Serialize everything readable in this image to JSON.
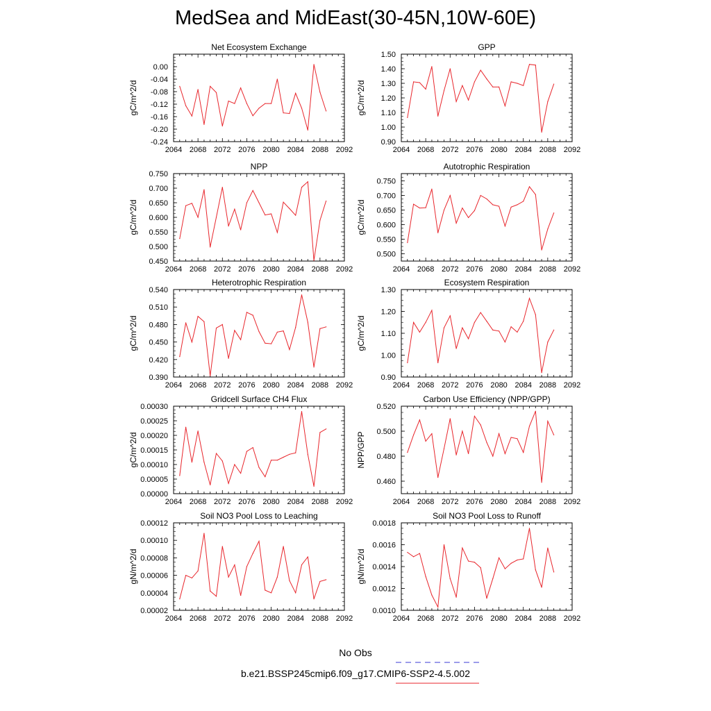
{
  "title": "MedSea and MidEast(30-45N,10W-60E)",
  "legend": {
    "obs_label": "No Obs",
    "obs_color": "#3a3ad6",
    "model_label": "b.e21.BSSP245cmip6.f09_g17.CMIP6-SSP2-4.5.002",
    "model_color": "#e8252b"
  },
  "chart_data": [
    {
      "type": "line",
      "title": "Net Ecosystem Exchange",
      "ylabel": "gC/m^2/d",
      "xlim": [
        2064,
        2092
      ],
      "ylim": [
        -0.24,
        0.04
      ],
      "xticks": [
        "2064",
        "2068",
        "2072",
        "2076",
        "2080",
        "2084",
        "2088",
        "2092"
      ],
      "yticks": [
        "-0.24",
        "-0.20",
        "-0.16",
        "-0.12",
        "-0.08",
        "-0.04",
        "0.00"
      ],
      "ytick_values": [
        -0.24,
        -0.2,
        -0.16,
        -0.12,
        -0.08,
        -0.04,
        0.0
      ],
      "x": [
        2065,
        2066,
        2067,
        2068,
        2069,
        2070,
        2071,
        2072,
        2073,
        2074,
        2075,
        2076,
        2077,
        2078,
        2079,
        2080,
        2081,
        2082,
        2083,
        2084,
        2085,
        2086,
        2087,
        2088,
        2089
      ],
      "series": [
        {
          "values": [
            -0.063,
            -0.125,
            -0.158,
            -0.073,
            -0.185,
            -0.063,
            -0.083,
            -0.19,
            -0.11,
            -0.118,
            -0.068,
            -0.118,
            -0.157,
            -0.133,
            -0.118,
            -0.118,
            -0.04,
            -0.148,
            -0.15,
            -0.085,
            -0.133,
            -0.203,
            0.007,
            -0.082,
            -0.142
          ]
        }
      ]
    },
    {
      "type": "line",
      "title": "GPP",
      "ylabel": "gC/m^2/d",
      "xlim": [
        2064,
        2092
      ],
      "ylim": [
        0.9,
        1.5
      ],
      "xticks": [
        "2064",
        "2068",
        "2072",
        "2076",
        "2080",
        "2084",
        "2088",
        "2092"
      ],
      "yticks": [
        "0.90",
        "1.00",
        "1.10",
        "1.20",
        "1.30",
        "1.40",
        "1.50"
      ],
      "ytick_values": [
        0.9,
        1.0,
        1.1,
        1.2,
        1.3,
        1.4,
        1.5
      ],
      "x": [
        2065,
        2066,
        2067,
        2068,
        2069,
        2070,
        2071,
        2072,
        2073,
        2074,
        2075,
        2076,
        2077,
        2078,
        2079,
        2080,
        2081,
        2082,
        2083,
        2084,
        2085,
        2086,
        2087,
        2088,
        2089
      ],
      "series": [
        {
          "values": [
            1.065,
            1.31,
            1.305,
            1.26,
            1.415,
            1.075,
            1.25,
            1.4,
            1.175,
            1.285,
            1.185,
            1.31,
            1.39,
            1.33,
            1.275,
            1.275,
            1.145,
            1.31,
            1.3,
            1.285,
            1.43,
            1.425,
            0.965,
            1.175,
            1.295
          ]
        }
      ]
    },
    {
      "type": "line",
      "title": "NPP",
      "ylabel": "gC/m^2/d",
      "xlim": [
        2064,
        2092
      ],
      "ylim": [
        0.45,
        0.75
      ],
      "xticks": [
        "2064",
        "2068",
        "2072",
        "2076",
        "2080",
        "2084",
        "2088",
        "2092"
      ],
      "yticks": [
        "0.450",
        "0.500",
        "0.550",
        "0.600",
        "0.650",
        "0.700",
        "0.750"
      ],
      "ytick_values": [
        0.45,
        0.5,
        0.55,
        0.6,
        0.65,
        0.7,
        0.75
      ],
      "x": [
        2065,
        2066,
        2067,
        2068,
        2069,
        2070,
        2071,
        2072,
        2073,
        2074,
        2075,
        2076,
        2077,
        2078,
        2079,
        2080,
        2081,
        2082,
        2083,
        2084,
        2085,
        2086,
        2087,
        2088,
        2089
      ],
      "series": [
        {
          "values": [
            0.527,
            0.64,
            0.648,
            0.6,
            0.695,
            0.498,
            0.6,
            0.703,
            0.57,
            0.628,
            0.557,
            0.65,
            0.692,
            0.65,
            0.608,
            0.612,
            0.548,
            0.652,
            0.63,
            0.607,
            0.703,
            0.722,
            0.452,
            0.59,
            0.656
          ]
        }
      ]
    },
    {
      "type": "line",
      "title": "Autotrophic Respiration",
      "ylabel": "gC/m^2/d",
      "xlim": [
        2064,
        2092
      ],
      "ylim": [
        0.475,
        0.775
      ],
      "xticks": [
        "2064",
        "2068",
        "2072",
        "2076",
        "2080",
        "2084",
        "2088",
        "2092"
      ],
      "yticks": [
        "0.500",
        "0.550",
        "0.600",
        "0.650",
        "0.700",
        "0.750"
      ],
      "ytick_values": [
        0.5,
        0.55,
        0.6,
        0.65,
        0.7,
        0.75
      ],
      "x": [
        2065,
        2066,
        2067,
        2068,
        2069,
        2070,
        2071,
        2072,
        2073,
        2074,
        2075,
        2076,
        2077,
        2078,
        2079,
        2080,
        2081,
        2082,
        2083,
        2084,
        2085,
        2086,
        2087,
        2088,
        2089
      ],
      "series": [
        {
          "values": [
            0.538,
            0.67,
            0.657,
            0.658,
            0.722,
            0.572,
            0.65,
            0.7,
            0.605,
            0.657,
            0.624,
            0.648,
            0.7,
            0.688,
            0.668,
            0.663,
            0.595,
            0.66,
            0.668,
            0.68,
            0.73,
            0.703,
            0.513,
            0.585,
            0.64
          ]
        }
      ]
    },
    {
      "type": "line",
      "title": "Heterotrophic Respiration",
      "ylabel": "gC/m^2/d",
      "xlim": [
        2064,
        2092
      ],
      "ylim": [
        0.39,
        0.54
      ],
      "xticks": [
        "2064",
        "2068",
        "2072",
        "2076",
        "2080",
        "2084",
        "2088",
        "2092"
      ],
      "yticks": [
        "0.390",
        "0.420",
        "0.450",
        "0.480",
        "0.510",
        "0.540"
      ],
      "ytick_values": [
        0.39,
        0.42,
        0.45,
        0.48,
        0.51,
        0.54
      ],
      "x": [
        2065,
        2066,
        2067,
        2068,
        2069,
        2070,
        2071,
        2072,
        2073,
        2074,
        2075,
        2076,
        2077,
        2078,
        2079,
        2080,
        2081,
        2082,
        2083,
        2084,
        2085,
        2086,
        2087,
        2088,
        2089
      ],
      "series": [
        {
          "values": [
            0.425,
            0.483,
            0.45,
            0.494,
            0.485,
            0.392,
            0.474,
            0.48,
            0.422,
            0.47,
            0.454,
            0.501,
            0.496,
            0.468,
            0.448,
            0.447,
            0.467,
            0.469,
            0.437,
            0.475,
            0.531,
            0.484,
            0.407,
            0.473,
            0.476
          ]
        }
      ]
    },
    {
      "type": "line",
      "title": "Ecosystem Respiration",
      "ylabel": "gC/m^2/d",
      "xlim": [
        2064,
        2092
      ],
      "ylim": [
        0.9,
        1.3
      ],
      "xticks": [
        "2064",
        "2068",
        "2072",
        "2076",
        "2080",
        "2084",
        "2088",
        "2092"
      ],
      "yticks": [
        "0.90",
        "1.00",
        "1.10",
        "1.20",
        "1.30"
      ],
      "ytick_values": [
        0.9,
        1.0,
        1.1,
        1.2,
        1.3
      ],
      "x": [
        2065,
        2066,
        2067,
        2068,
        2069,
        2070,
        2071,
        2072,
        2073,
        2074,
        2075,
        2076,
        2077,
        2078,
        2079,
        2080,
        2081,
        2082,
        2083,
        2084,
        2085,
        2086,
        2087,
        2088,
        2089
      ],
      "series": [
        {
          "values": [
            0.965,
            1.15,
            1.105,
            1.15,
            1.205,
            0.965,
            1.125,
            1.18,
            1.03,
            1.125,
            1.075,
            1.15,
            1.195,
            1.155,
            1.115,
            1.11,
            1.06,
            1.13,
            1.105,
            1.155,
            1.26,
            1.185,
            0.92,
            1.06,
            1.115
          ]
        }
      ]
    },
    {
      "type": "line",
      "title": "Gridcell Surface CH4 Flux",
      "ylabel": "gC/m^2/d",
      "xlim": [
        2064,
        2092
      ],
      "ylim": [
        0,
        0.0003
      ],
      "xticks": [
        "2064",
        "2068",
        "2072",
        "2076",
        "2080",
        "2084",
        "2088",
        "2092"
      ],
      "yticks": [
        "0.00000",
        "0.00005",
        "0.00010",
        "0.00015",
        "0.00020",
        "0.00025",
        "0.00030"
      ],
      "ytick_values": [
        0,
        5e-05,
        0.0001,
        0.00015,
        0.0002,
        0.00025,
        0.0003
      ],
      "x": [
        2065,
        2066,
        2067,
        2068,
        2069,
        2070,
        2071,
        2072,
        2073,
        2074,
        2075,
        2076,
        2077,
        2078,
        2079,
        2080,
        2081,
        2082,
        2083,
        2084,
        2085,
        2086,
        2087,
        2088,
        2089
      ],
      "series": [
        {
          "values": [
            6.2e-05,
            0.000228,
            0.000108,
            0.000215,
            0.000108,
            3e-05,
            0.000138,
            0.000112,
            3.5e-05,
            0.0001,
            7e-05,
            0.000145,
            0.000158,
            9e-05,
            5.8e-05,
            0.000115,
            0.000115,
            0.000125,
            0.000135,
            0.00014,
            0.000282,
            0.000135,
            2.5e-05,
            0.00021,
            0.000222
          ]
        }
      ]
    },
    {
      "type": "line",
      "title": "Carbon Use Efficiency (NPP/GPP)",
      "ylabel": "NPP/GPP",
      "xlim": [
        2064,
        2092
      ],
      "ylim": [
        0.45,
        0.52
      ],
      "xticks": [
        "2064",
        "2068",
        "2072",
        "2076",
        "2080",
        "2084",
        "2088",
        "2092"
      ],
      "yticks": [
        "0.460",
        "0.480",
        "0.500",
        "0.520"
      ],
      "ytick_values": [
        0.46,
        0.48,
        0.5,
        0.52
      ],
      "x": [
        2065,
        2066,
        2067,
        2068,
        2069,
        2070,
        2071,
        2072,
        2073,
        2074,
        2075,
        2076,
        2077,
        2078,
        2079,
        2080,
        2081,
        2082,
        2083,
        2084,
        2085,
        2086,
        2087,
        2088,
        2089
      ],
      "series": [
        {
          "values": [
            0.483,
            0.497,
            0.509,
            0.492,
            0.498,
            0.463,
            0.486,
            0.51,
            0.481,
            0.5,
            0.482,
            0.512,
            0.505,
            0.491,
            0.48,
            0.498,
            0.482,
            0.495,
            0.494,
            0.483,
            0.504,
            0.516,
            0.459,
            0.508,
            0.497
          ]
        }
      ]
    },
    {
      "type": "line",
      "title": "Soil NO3 Pool Loss to Leaching",
      "ylabel": "gN/m^2/d",
      "xlim": [
        2064,
        2092
      ],
      "ylim": [
        2e-05,
        0.00012
      ],
      "xticks": [
        "2064",
        "2068",
        "2072",
        "2076",
        "2080",
        "2084",
        "2088",
        "2092"
      ],
      "yticks": [
        "0.00002",
        "0.00004",
        "0.00006",
        "0.00008",
        "0.00010",
        "0.00012"
      ],
      "ytick_values": [
        2e-05,
        4e-05,
        6e-05,
        8e-05,
        0.0001,
        0.00012
      ],
      "x": [
        2065,
        2066,
        2067,
        2068,
        2069,
        2070,
        2071,
        2072,
        2073,
        2074,
        2075,
        2076,
        2077,
        2078,
        2079,
        2080,
        2081,
        2082,
        2083,
        2084,
        2085,
        2086,
        2087,
        2088,
        2089
      ],
      "series": [
        {
          "values": [
            3.3e-05,
            6e-05,
            5.7e-05,
            6.5e-05,
            0.000108,
            4.2e-05,
            3.6e-05,
            9.3e-05,
            5.8e-05,
            7.2e-05,
            3.7e-05,
            7e-05,
            8.5e-05,
            9.9e-05,
            4.3e-05,
            4e-05,
            5.8e-05,
            9.3e-05,
            5.4e-05,
            4e-05,
            7.2e-05,
            8.1e-05,
            3.3e-05,
            5.3e-05,
            5.5e-05
          ]
        }
      ]
    },
    {
      "type": "line",
      "title": "Soil NO3 Pool Loss to Runoff",
      "ylabel": "gN/m^2/d",
      "xlim": [
        2064,
        2092
      ],
      "ylim": [
        0.001,
        0.0018
      ],
      "xticks": [
        "2064",
        "2068",
        "2072",
        "2076",
        "2080",
        "2084",
        "2088",
        "2092"
      ],
      "yticks": [
        "0.0010",
        "0.0012",
        "0.0014",
        "0.0016",
        "0.0018"
      ],
      "ytick_values": [
        0.001,
        0.0012,
        0.0014,
        0.0016,
        0.0018
      ],
      "x": [
        2065,
        2066,
        2067,
        2068,
        2069,
        2070,
        2071,
        2072,
        2073,
        2074,
        2075,
        2076,
        2077,
        2078,
        2079,
        2080,
        2081,
        2082,
        2083,
        2084,
        2085,
        2086,
        2087,
        2088,
        2089
      ],
      "series": [
        {
          "values": [
            0.00153,
            0.00149,
            0.00152,
            0.00131,
            0.00114,
            0.00103,
            0.0016,
            0.00129,
            0.00112,
            0.00157,
            0.00145,
            0.00144,
            0.00139,
            0.00111,
            0.00129,
            0.00148,
            0.00138,
            0.00143,
            0.00146,
            0.00147,
            0.00175,
            0.00137,
            0.00121,
            0.00157,
            0.00135
          ]
        }
      ]
    }
  ]
}
